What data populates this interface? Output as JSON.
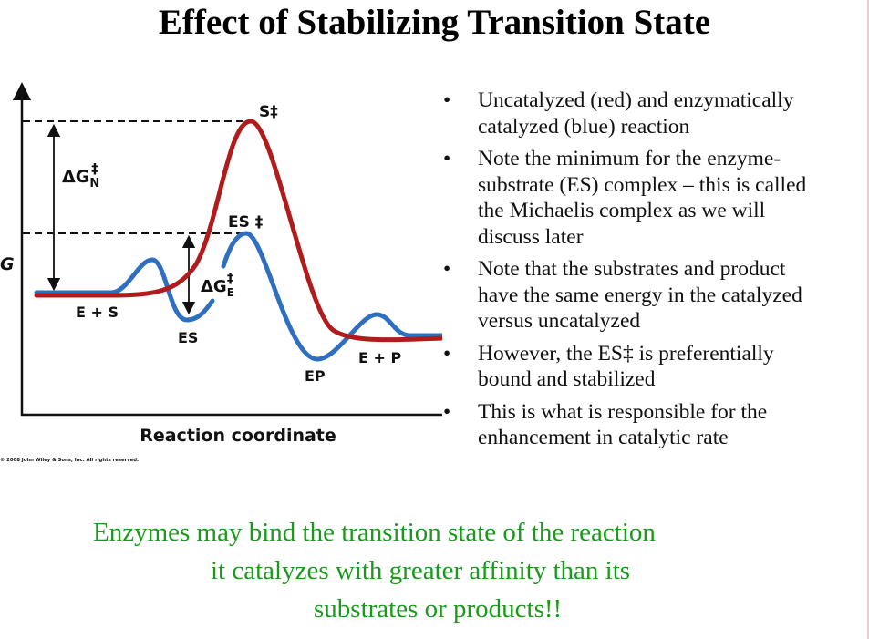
{
  "title": "Effect of Stabilizing Transition State",
  "diagram": {
    "y_axis_label": "G",
    "x_axis_label": "Reaction coordinate",
    "labels": {
      "s_ts": "S‡",
      "es_ts": "ES ‡",
      "dg_n": "ΔG",
      "dg_n_sub": "N",
      "dg_e": "ΔG",
      "dg_e_sub": "E",
      "dagger": "‡",
      "e_plus_s": "E + S",
      "es": "ES",
      "ep": "EP",
      "e_plus_p": "E + P"
    },
    "copyright": "© 2008 John Wiley & Sons, Inc. All rights reserved.",
    "colors": {
      "uncatalyzed": "#b01c1c",
      "catalyzed": "#2f6fc0"
    }
  },
  "bullets": [
    {
      "lines": [
        "Uncatalyzed (red) and enzymatically",
        "catalyzed (blue) reaction"
      ]
    },
    {
      "lines": [
        "Note the minimum for the enzyme-",
        "substrate (ES) complex – this is called",
        "the Michaelis complex as we will",
        "discuss later"
      ]
    },
    {
      "lines": [
        "Note that the substrates and product",
        "have the same energy in the catalyzed",
        "versus uncatalyzed"
      ]
    },
    {
      "lines": [
        "However, the ES‡ is preferentially",
        "bound and stabilized"
      ]
    },
    {
      "lines": [
        "This is what is responsible for the",
        "enhancement in catalytic rate"
      ]
    }
  ],
  "conclusion": {
    "lines": [
      "Enzymes may bind the transition state of the reaction",
      "it catalyzes with greater affinity than its",
      "substrates or products!!"
    ],
    "color": "#1a9a1a"
  }
}
